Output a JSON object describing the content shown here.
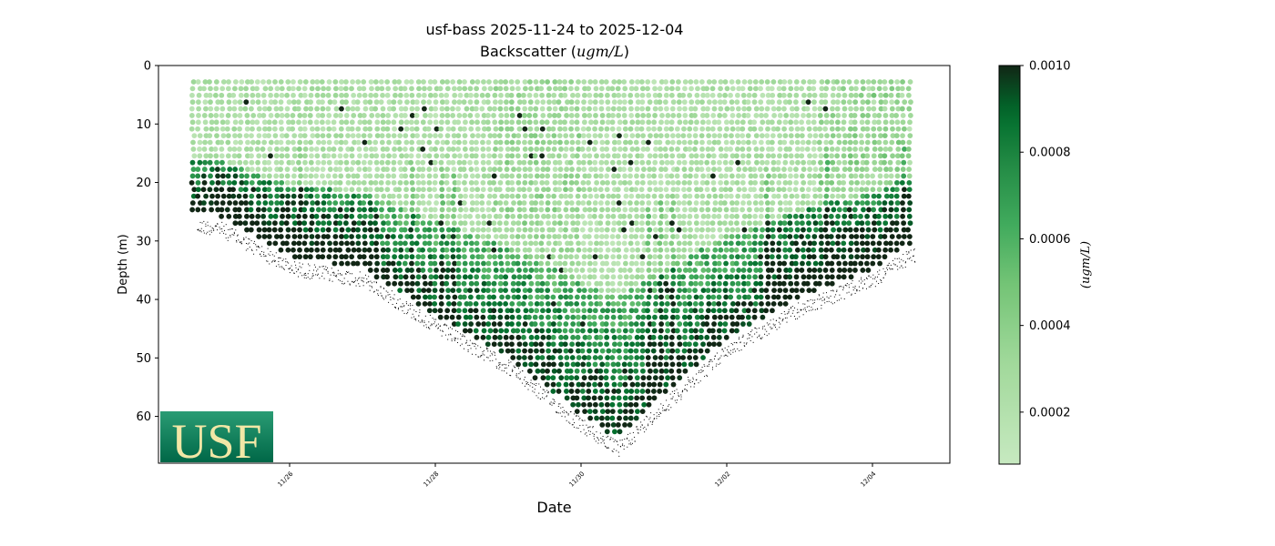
{
  "chart_data": {
    "type": "scatter",
    "title": "usf-bass 2025-11-24 to 2025-12-04",
    "subtitle_prefix": "Backscatter (",
    "subtitle_unit": "ugm/L",
    "subtitle_suffix": ")",
    "xlabel": "Date",
    "ylabel": "Depth (m)",
    "x_ticks": [
      "11/26",
      "11/28",
      "11/30",
      "12/02",
      "12/04"
    ],
    "y_ticks": [
      0,
      10,
      20,
      30,
      40,
      50,
      60
    ],
    "ylim": [
      68,
      0
    ],
    "colorbar": {
      "label": "(ugm/L)",
      "ticks": [
        "0.0002",
        "0.0004",
        "0.0006",
        "0.0008",
        "0.0010"
      ],
      "range": [
        8e-05,
        0.001
      ],
      "colormap": "Greens"
    },
    "bottom_depth_profile": [
      {
        "x": "11/25 00:00",
        "depth": 26
      },
      {
        "x": "11/26 00:00",
        "depth": 33
      },
      {
        "x": "11/27 00:00",
        "depth": 35
      },
      {
        "x": "11/28 00:00",
        "depth": 43
      },
      {
        "x": "11/29 00:00",
        "depth": 50
      },
      {
        "x": "11/30 00:00",
        "depth": 60
      },
      {
        "x": "11/30 12:00",
        "depth": 64
      },
      {
        "x": "12/01 00:00",
        "depth": 58
      },
      {
        "x": "12/02 00:00",
        "depth": 47
      },
      {
        "x": "12/03 00:00",
        "depth": 40
      },
      {
        "x": "12/04 00:00",
        "depth": 35
      },
      {
        "x": "12/04 12:00",
        "depth": 31
      }
    ],
    "logo_text": "USF",
    "colors": {
      "logo_green": "#006747",
      "logo_gold": "#f2e7a6",
      "bottom_dots": "#000000"
    }
  }
}
